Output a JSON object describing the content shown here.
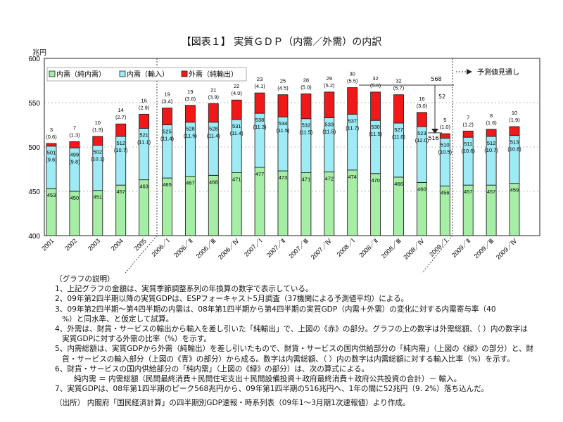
{
  "title": "【図表１】 実質ＧＤＰ（内需／外需）の内訳",
  "unit": "兆円",
  "chart_data": {
    "type": "bar",
    "stacked": true,
    "ylim": [
      400,
      600
    ],
    "yticks": [
      400,
      450,
      500,
      550,
      600
    ],
    "ylabel": "兆円",
    "grid": true,
    "legend_placement": "top-left",
    "categories": [
      "2001",
      "2002",
      "2003",
      "2004",
      "2005",
      "2006／Ⅰ",
      "2006／Ⅱ",
      "2006／Ⅲ",
      "2006／Ⅳ",
      "2007／Ⅰ",
      "2007／Ⅱ",
      "2007／Ⅲ",
      "2007／Ⅳ",
      "2008／Ⅰ",
      "2008／Ⅱ",
      "2008／Ⅲ",
      "2008／Ⅳ",
      "2009／Ⅰ",
      "2009／Ⅱ",
      "2009／Ⅲ",
      "2009／Ⅳ"
    ],
    "series": [
      {
        "name": "内需（純内需）",
        "color": "#a6eea6",
        "values": [
          453,
          450,
          451,
          457,
          463,
          465,
          467,
          468,
          471,
          477,
          473,
          471,
          472,
          474,
          470,
          466,
          460,
          456,
          457,
          457,
          459
        ]
      },
      {
        "name": "内需（輸入）",
        "color": "#9eeaf5",
        "cumulative_values": [
          501,
          499,
          502,
          512,
          521,
          525,
          528,
          528,
          531,
          538,
          534,
          532,
          533,
          537,
          530,
          527,
          523,
          510,
          511,
          512,
          513
        ],
        "import_ratio_pct": [
          9.6,
          9.8,
          10.1,
          10.7,
          11.1,
          11.4,
          11.5,
          11.4,
          11.4,
          11.3,
          11.5,
          11.5,
          11.5,
          11.7,
          11.5,
          11.0,
          12.0,
          10.5,
          10.6,
          10.7,
          10.8
        ]
      },
      {
        "name": "外需（純輸出）",
        "color": "#f01818",
        "values": [
          3,
          7,
          10,
          14,
          16,
          19,
          19,
          21,
          22,
          23,
          25,
          28,
          29,
          30,
          32,
          32,
          16,
          5,
          7,
          8,
          10
        ],
        "share_pct": [
          0.6,
          1.3,
          1.9,
          2.7,
          2.9,
          3.4,
          3.6,
          3.9,
          4.0,
          4.1,
          4.5,
          5.0,
          5.2,
          5.5,
          5.6,
          5.7,
          3.0,
          1.0,
          1.2,
          1.6,
          1.9
        ]
      }
    ],
    "annotations": {
      "peak": "568",
      "drop": "52",
      "trough": "516",
      "forecast": "予測値見通し"
    }
  },
  "notes": [
    "（グラフの説明）",
    "1、上記グラフの金額は、実質季節調整系列の年換算の数字で表示している。",
    "2、09年第2四半期以降の実質GDPは、ESPフォーキャスト5月調査（37機関による予測値平均）による。",
    "3、09年第2四半期～第4四半期の内需は、08年第1四半期から第4四半期の実質GDP（内需＋外需）の変化に対する内需寄与率（40",
    "   %）と同水準、と仮定して試算。",
    "4、外需は、財貨・サービスの輸出から輸入を差し引いた「純輸出」で、上図の《赤》の部分。グラフの上の数字は外需総額、（ ）内の数字は",
    "   実質GDPに対する外需の比率（%）を示す。",
    "5、内需総額は、実質GDPから外需（純輸出）を差し引いたもので、財貨・サービスの国内供給部分の「純内需」（上図の《緑》の部分）と、財",
    "   貨・サービスの輸入部分（上図の《青》の部分）から成る。数字は内需総額、（ ）内の数字は内需総額に対する輸入比率（%）を示す。",
    "6、財貨・サービスの国内供給部分の「純内需」（上図の《緑》の部分）は、次の算式による。",
    "        純内需 ＝ 内需総額（民間最終消費＋民間住宅支出＋民間設備投資＋政府最終消費＋政府公共投資の合計）－ 輸入。",
    "7、実質GDPは、08年第1四半期のピーク568兆円から、09年第1四半期の516兆円へ、1年の間に52兆円（9. 2%）落ち込んだ。"
  ],
  "source": "（出所） 内閣府「国民経済計算」の四半期別GDP速報・時系列表（09年1～3月期1次速報値）より作成。"
}
